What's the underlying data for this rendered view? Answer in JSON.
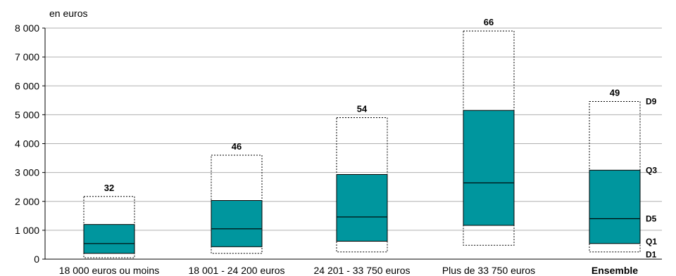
{
  "chart_data": {
    "type": "boxplot",
    "unit_label": "en euros",
    "ylim": [
      0,
      8000
    ],
    "yticks": [
      0,
      1000,
      2000,
      3000,
      4000,
      5000,
      6000,
      7000,
      8000
    ],
    "ytick_labels": [
      "0",
      "1 000",
      "2 000",
      "3 000",
      "4 000",
      "5 000",
      "6 000",
      "7 000",
      "8 000"
    ],
    "grid": true,
    "colors": {
      "box": "#00969e",
      "grid": "#b0b0b0",
      "axis": "#000000"
    },
    "categories": [
      {
        "label": "18 000 euros ou moins",
        "bold": false,
        "D1": 50,
        "Q1": 200,
        "D5": 540,
        "Q3": 1200,
        "D9": 2170,
        "count": "32"
      },
      {
        "label": "18 001 - 24 200 euros",
        "bold": false,
        "D1": 200,
        "Q1": 430,
        "D5": 1050,
        "Q3": 2030,
        "D9": 3600,
        "count": "46"
      },
      {
        "label": "24 201 - 33 750 euros",
        "bold": false,
        "D1": 250,
        "Q1": 620,
        "D5": 1460,
        "Q3": 2930,
        "D9": 4900,
        "count": "54"
      },
      {
        "label": "Plus de 33 750 euros",
        "bold": false,
        "D1": 480,
        "Q1": 1170,
        "D5": 2640,
        "Q3": 5150,
        "D9": 7900,
        "count": "66"
      },
      {
        "label": "Ensemble",
        "bold": true,
        "D1": 250,
        "Q1": 540,
        "D5": 1400,
        "Q3": 3080,
        "D9": 5460,
        "count": "49"
      }
    ],
    "legend": [
      {
        "label": "D9",
        "value": 5460
      },
      {
        "label": "Q3",
        "value": 3080
      },
      {
        "label": "D5",
        "value": 1400
      },
      {
        "label": "Q1",
        "value": 540
      },
      {
        "label": "D1",
        "value": 250
      }
    ]
  }
}
